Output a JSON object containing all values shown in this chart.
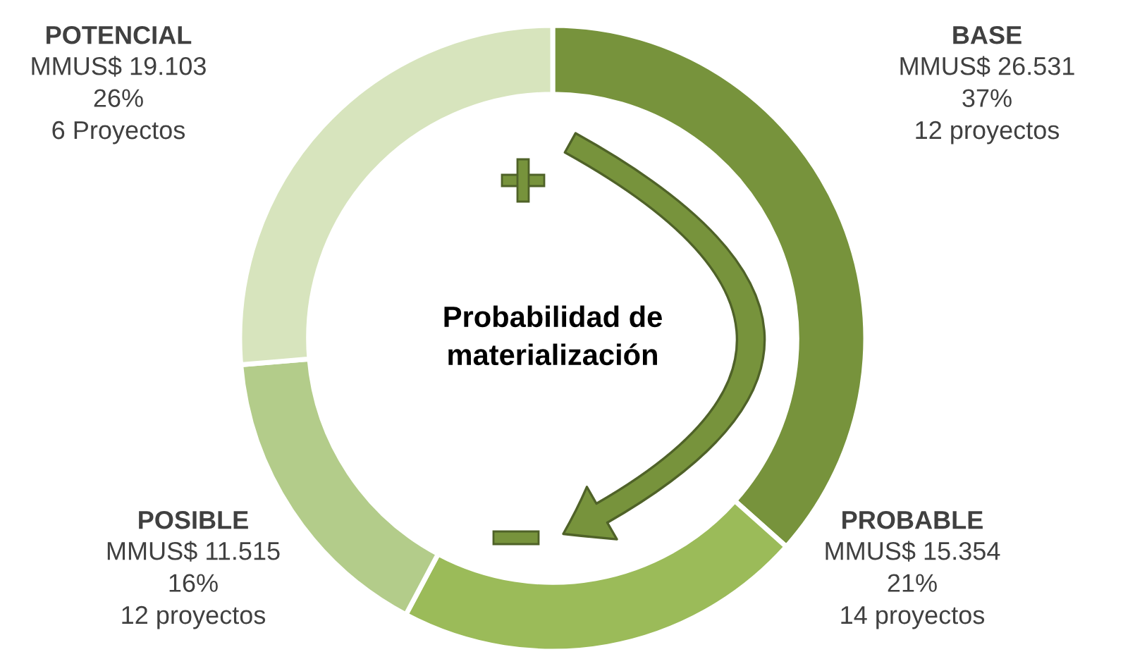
{
  "chart_data": {
    "type": "donut",
    "categories": [
      "BASE",
      "PROBABLE",
      "POSIBLE",
      "POTENCIAL"
    ],
    "values": [
      26531,
      15354,
      11515,
      19103
    ],
    "colors": [
      "#77933c",
      "#9bbb59",
      "#b3cc8a",
      "#d7e4bd"
    ],
    "value_labels": [
      "MMUS$ 26.531\n37%\n12 proyectos",
      "MMUS$ 15.354\n21%\n14 proyectos",
      "MMUS$ 11.515\n16%\n12 proyectos",
      "MMUS$ 19.103\n26%\n6 Proyectos"
    ],
    "annotations": [
      "Probabilidad de\nmaterialización"
    ],
    "legend": false
  }
}
